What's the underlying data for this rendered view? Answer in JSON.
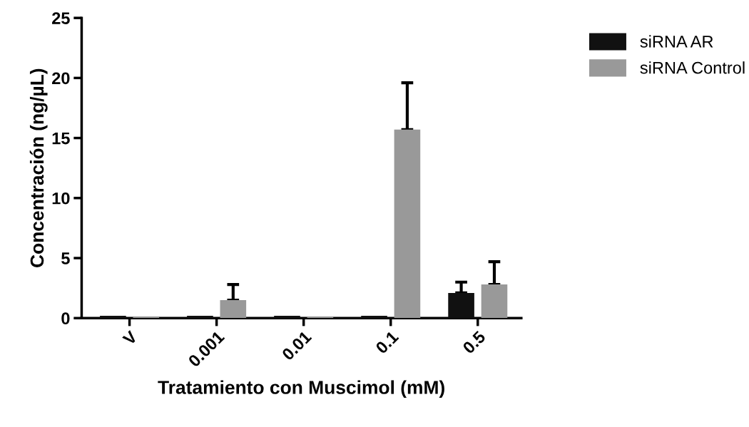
{
  "chart_data": {
    "type": "bar",
    "xlabel": "Tratamiento con Muscimol (mM)",
    "ylabel": "Concentración (ng/µL)",
    "categories": [
      "V",
      "0.001",
      "0.01",
      "0.1",
      "0.5"
    ],
    "series": [
      {
        "name": "siRNA AR",
        "color": "#111111",
        "values": [
          0.2,
          0.2,
          0.2,
          0.2,
          2.1
        ],
        "errors": [
          null,
          null,
          null,
          null,
          [
            2.1,
            3.0
          ]
        ]
      },
      {
        "name": "siRNA Control",
        "color": "#999999",
        "values": [
          0.1,
          1.5,
          0.1,
          15.7,
          2.8
        ],
        "errors": [
          null,
          [
            1.5,
            2.8
          ],
          null,
          [
            15.7,
            19.6
          ],
          [
            2.8,
            4.7
          ]
        ]
      }
    ],
    "ylim": [
      0,
      25
    ],
    "yticks": [
      0,
      5,
      10,
      15,
      20,
      25
    ],
    "grid": false,
    "legend": "top right"
  }
}
